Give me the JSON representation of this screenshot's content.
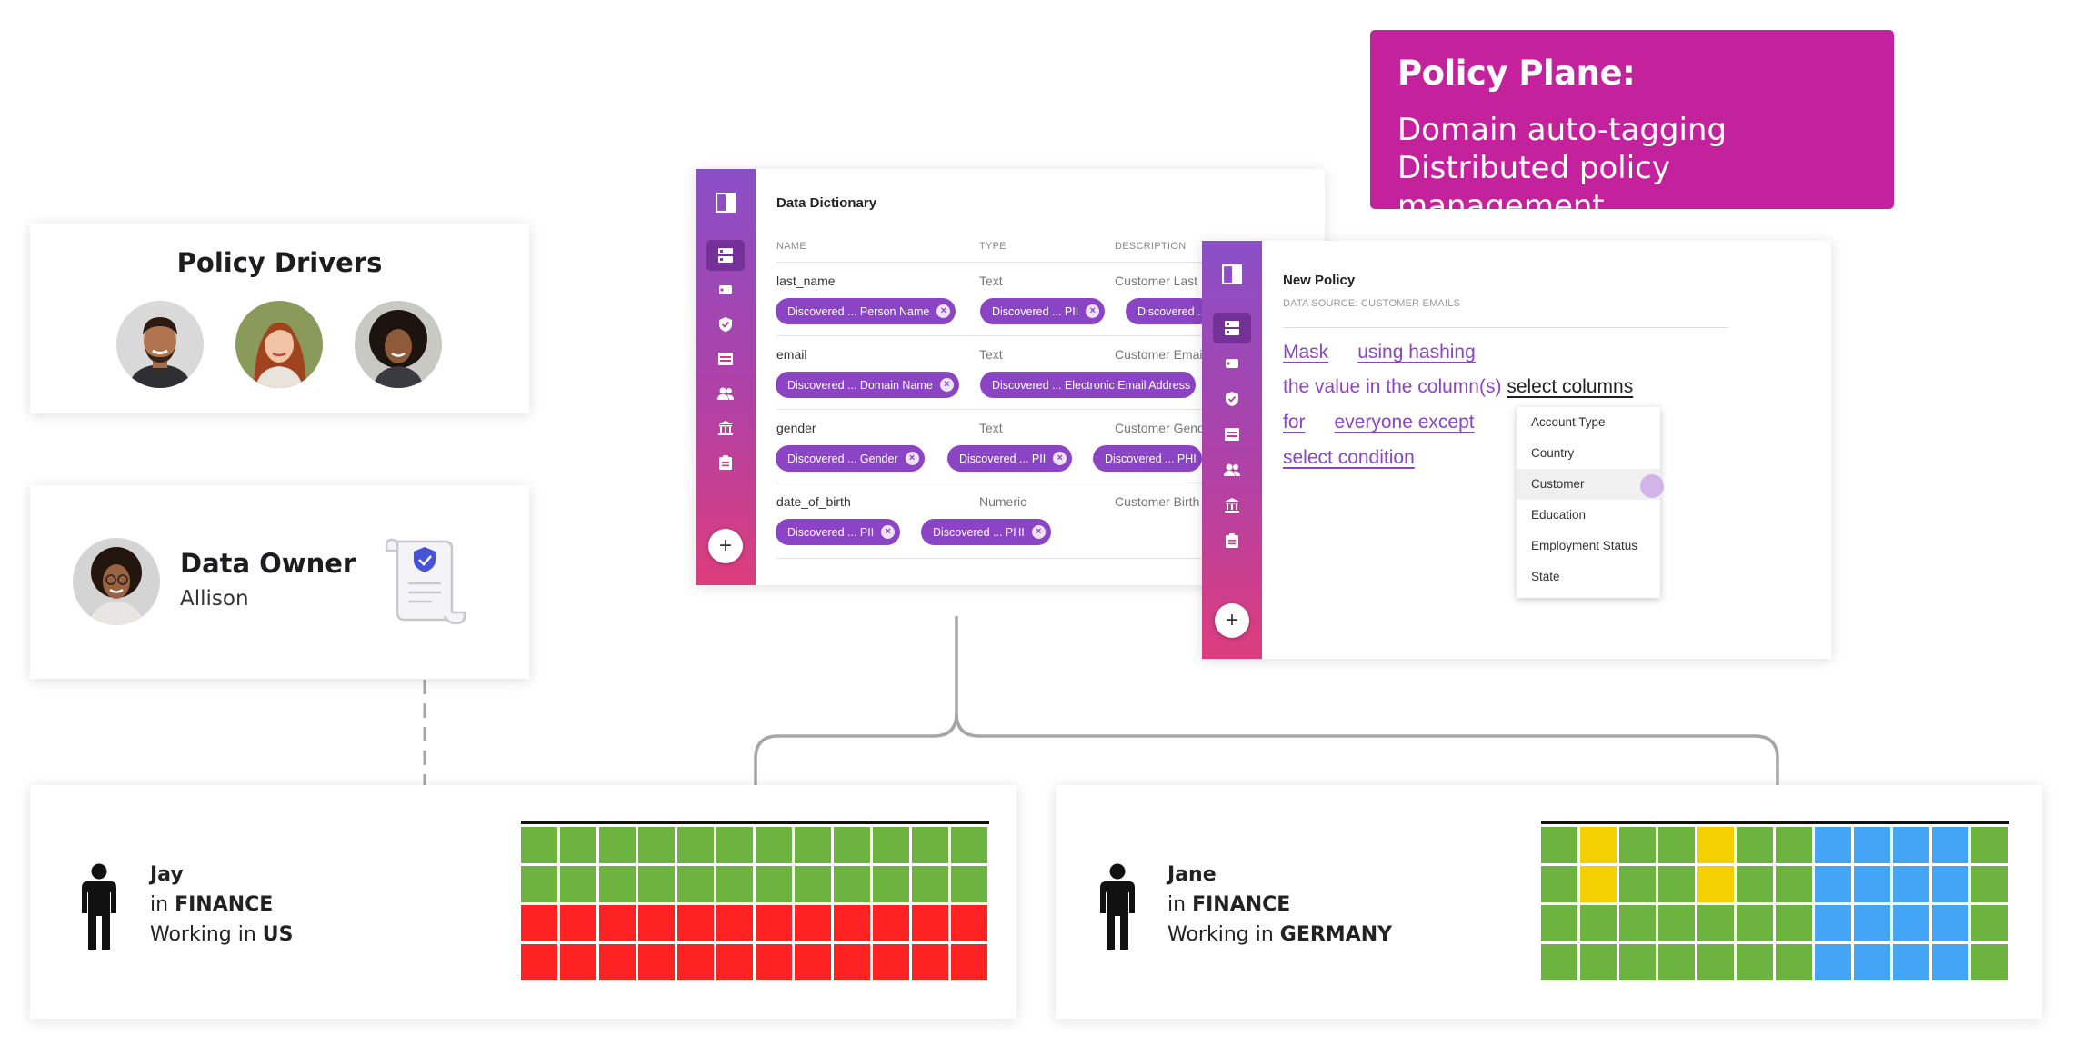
{
  "banner": {
    "title": "Policy Plane:",
    "line1": "Domain auto-tagging",
    "line2": "Distributed policy management",
    "color": "#c4229d"
  },
  "policy_drivers": {
    "title": "Policy Drivers",
    "avatars": [
      "avatar-man",
      "avatar-woman-red-hair",
      "avatar-woman-curly-hair"
    ]
  },
  "data_owner": {
    "title": "Data Owner",
    "name": "Allison",
    "icon": "policy-document-shield-icon"
  },
  "data_dictionary": {
    "title": "Data Dictionary",
    "columns": [
      "NAME",
      "TYPE",
      "DESCRIPTION"
    ],
    "rows": [
      {
        "name": "last_name",
        "type": "Text",
        "description": "Customer Last Name",
        "tags": [
          "Discovered ... Person Name",
          "Discovered ... PII",
          "Discovered ..."
        ]
      },
      {
        "name": "email",
        "type": "Text",
        "description": "Customer Email",
        "tags": [
          "Discovered ... Domain Name",
          "Discovered ... Electronic Email Address"
        ]
      },
      {
        "name": "gender",
        "type": "Text",
        "description": "Customer Gender",
        "tags": [
          "Discovered ... Gender",
          "Discovered ... PII",
          "Discovered ... PHI"
        ]
      },
      {
        "name": "date_of_birth",
        "type": "Numeric",
        "description": "Customer Birth",
        "tags": [
          "Discovered ... PII",
          "Discovered ... PHI"
        ]
      }
    ]
  },
  "new_policy": {
    "title": "New Policy",
    "subtitle": "DATA SOURCE: CUSTOMER EMAILS",
    "mask": "Mask",
    "using_hashing": "using hashing",
    "value_in_columns": "the value in the column(s)",
    "select_columns": "select columns",
    "for": "for",
    "everyone_except": "everyone except",
    "select_condition": "select condition",
    "column_options": [
      "Account Type",
      "Country",
      "Customer",
      "Education",
      "Employment Status",
      "State"
    ],
    "hovered_option": "Customer"
  },
  "sidebar_icons": [
    "panel-icon",
    "database-icon",
    "tag-icon",
    "shield-icon",
    "table-icon",
    "users-icon",
    "bank-icon",
    "clipboard-icon"
  ],
  "add_button": "+",
  "users": [
    {
      "name": "Jay",
      "prefix_dept": "in ",
      "dept": "FINANCE",
      "prefix_loc": "Working in ",
      "loc": "US",
      "grid_rows": [
        [
          "g",
          "g",
          "g",
          "g",
          "g",
          "g",
          "g",
          "g",
          "g",
          "g",
          "g",
          "g"
        ],
        [
          "g",
          "g",
          "g",
          "g",
          "g",
          "g",
          "g",
          "g",
          "g",
          "g",
          "g",
          "g"
        ],
        [
          "r",
          "r",
          "r",
          "r",
          "r",
          "r",
          "r",
          "r",
          "r",
          "r",
          "r",
          "r"
        ],
        [
          "r",
          "r",
          "r",
          "r",
          "r",
          "r",
          "r",
          "r",
          "r",
          "r",
          "r",
          "r"
        ]
      ]
    },
    {
      "name": "Jane",
      "prefix_dept": "in ",
      "dept": "FINANCE",
      "prefix_loc": "Working in ",
      "loc": "GERMANY",
      "grid_rows": [
        [
          "g",
          "y",
          "g",
          "g",
          "y",
          "g",
          "g",
          "b",
          "b",
          "b",
          "b",
          "g"
        ],
        [
          "g",
          "y",
          "g",
          "g",
          "y",
          "g",
          "g",
          "b",
          "b",
          "b",
          "b",
          "g"
        ],
        [
          "g",
          "g",
          "g",
          "g",
          "g",
          "g",
          "g",
          "b",
          "b",
          "b",
          "b",
          "g"
        ],
        [
          "g",
          "g",
          "g",
          "g",
          "g",
          "g",
          "g",
          "b",
          "b",
          "b",
          "b",
          "g"
        ]
      ]
    }
  ],
  "cell_colors": {
    "g": "#6db33f",
    "r": "#ff2222",
    "y": "#f5d000",
    "b": "#42a5f5"
  }
}
